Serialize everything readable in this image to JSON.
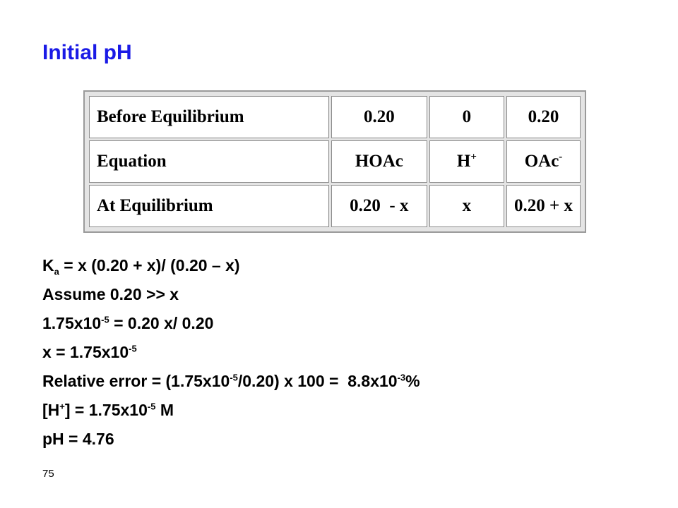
{
  "slide": {
    "title": "Initial pH",
    "page_number": "75",
    "title_color": "#1a1ae6"
  },
  "table": {
    "rows": [
      {
        "label": "Before Equilibrium",
        "c1": "0.20",
        "c2": "0",
        "c3": "0.20"
      },
      {
        "label": "Equation",
        "c1": "HOAc",
        "c2_base": "H",
        "c2_sup": "+",
        "c3_base": "OAc",
        "c3_sup": "-"
      },
      {
        "label": "At Equilibrium",
        "c1": "0.20  - x",
        "c2": "x",
        "c3": "0.20 + x"
      }
    ]
  },
  "lines": {
    "l1": {
      "a": "K",
      "sub": "a",
      "b": " = x (0.20 + x)/ (0.20 – x)"
    },
    "l2": {
      "text": "Assume 0.20 >> x"
    },
    "l3": {
      "a": "1.75x10",
      "sup": "-5",
      "b": " = 0.20 x/ 0.20"
    },
    "l4": {
      "a": "x = 1.75x10",
      "sup": "-5"
    },
    "l5": {
      "a": "Relative error = (1.75x10",
      "sup1": "-5",
      "b": "/0.20) x 100 =  8.8x10",
      "sup2": "-3",
      "c": "%"
    },
    "l6": {
      "a": "[H",
      "sup1": "+",
      "b": "] = 1.75x10",
      "sup2": "-5",
      "c": " M"
    },
    "l7": {
      "text": "pH = 4.76"
    }
  }
}
